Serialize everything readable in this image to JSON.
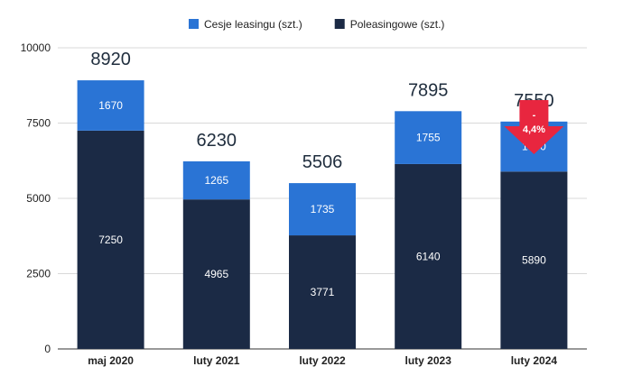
{
  "chart_data": {
    "type": "bar",
    "stacked": true,
    "categories": [
      "maj 2020",
      "luty 2021",
      "luty 2022",
      "luty 2023",
      "luty 2024"
    ],
    "series": [
      {
        "name": "Poleasingowe (szt.)",
        "values": [
          7250,
          4965,
          3771,
          6140,
          5890
        ],
        "color": "#1b2a45"
      },
      {
        "name": "Cesje leasingu (szt.)",
        "values": [
          1670,
          1265,
          1735,
          1755,
          1660
        ],
        "color": "#2a74d5"
      }
    ],
    "totals": [
      "8920",
      "6230",
      "5506",
      "7895",
      "7550"
    ],
    "ylim": [
      0,
      10000
    ],
    "yticks": [
      "0",
      "2500",
      "5000",
      "7500",
      "10000"
    ],
    "grid": true,
    "legend_position": "top",
    "annotation": {
      "category": "luty 2024",
      "sign": "-",
      "value": "4,4%",
      "color": "#e8263f",
      "icon": "arrow-down-icon"
    }
  }
}
